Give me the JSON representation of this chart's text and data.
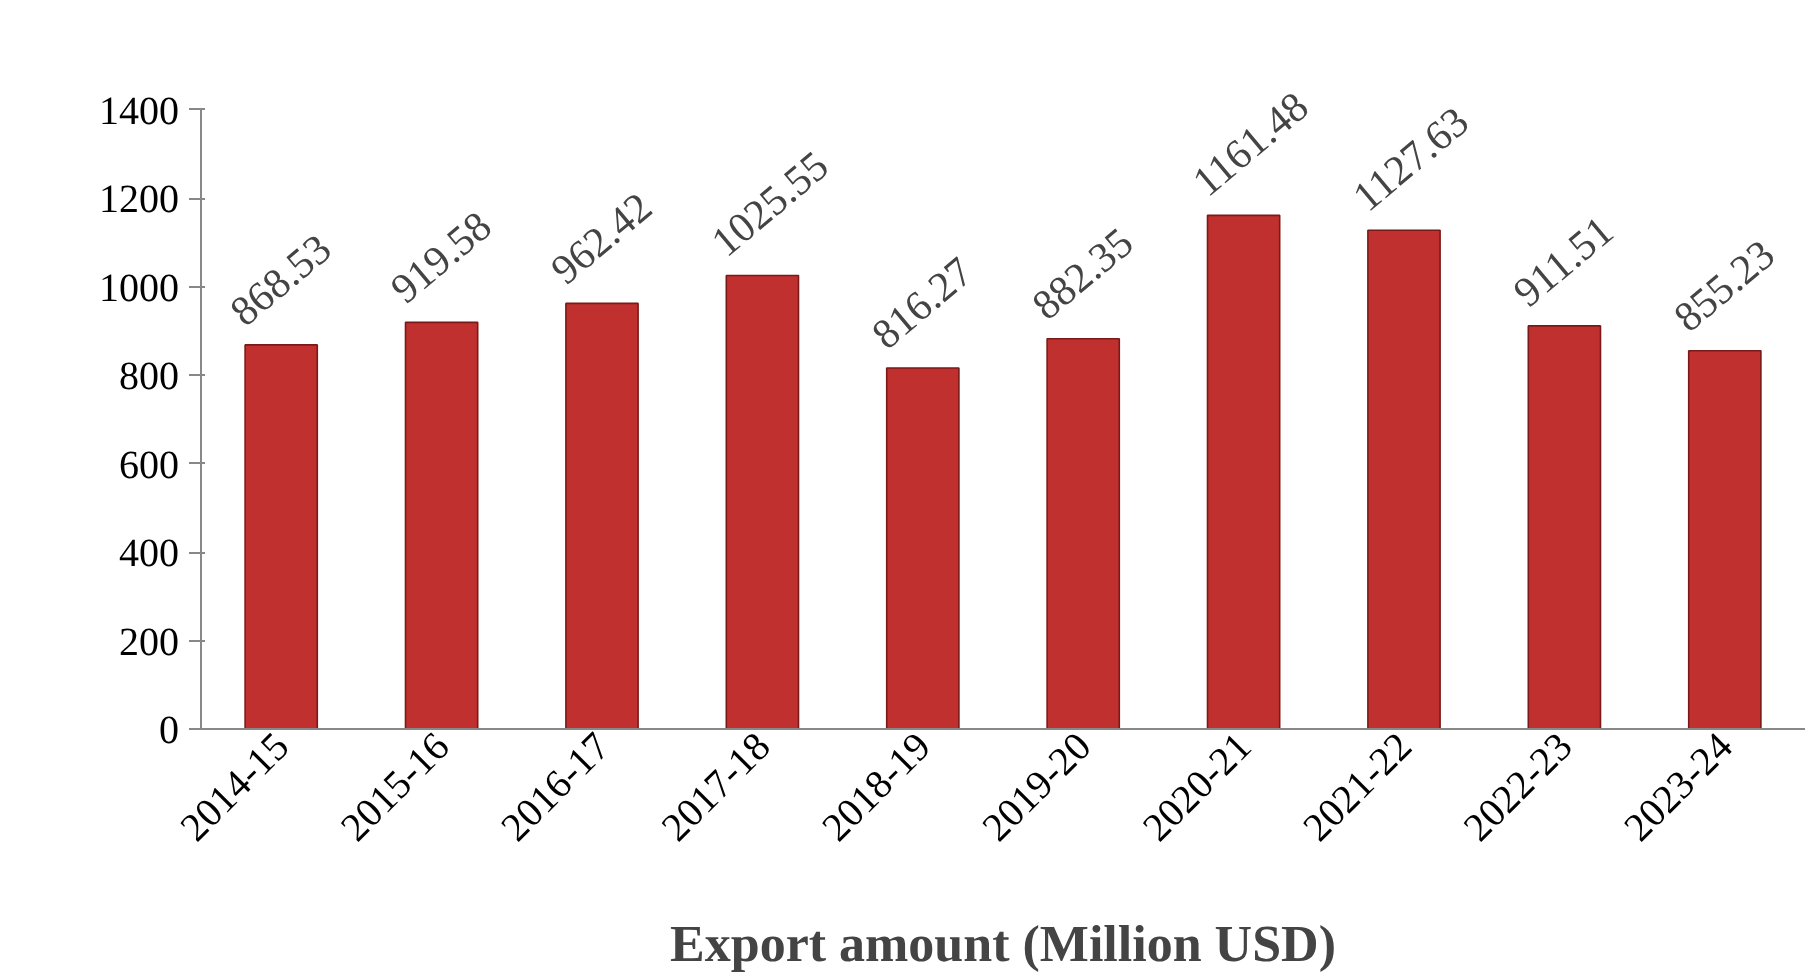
{
  "chart_data": {
    "type": "bar",
    "xlabel": "Export amount (Million USD)",
    "categories": [
      "2014-15",
      "2015-16",
      "2016-17",
      "2017-18",
      "2018-19",
      "2019-20",
      "2020-21",
      "2021-22",
      "2022-23",
      "2023-24"
    ],
    "values": [
      868.53,
      919.58,
      962.42,
      1025.55,
      816.27,
      882.35,
      1161.48,
      1127.63,
      911.51,
      855.23
    ],
    "color": "#c0302e",
    "ylim": [
      0,
      1400
    ],
    "yticks": [
      0,
      200,
      400,
      600,
      800,
      1000,
      1200,
      1400
    ],
    "data_labels": true,
    "grid": false
  }
}
